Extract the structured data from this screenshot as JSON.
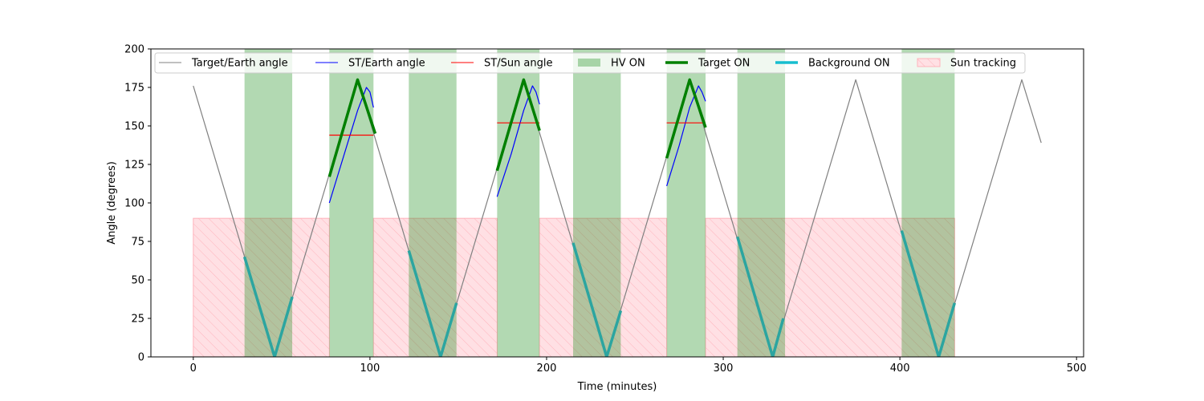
{
  "chart_data": {
    "type": "line",
    "xlabel": "Time (minutes)",
    "ylabel": "Angle (degrees)",
    "xlim": [
      -24,
      504
    ],
    "ylim": [
      0,
      200
    ],
    "xticks": [
      0,
      100,
      200,
      300,
      400,
      500
    ],
    "yticks": [
      0,
      25,
      50,
      75,
      100,
      125,
      150,
      175,
      200
    ],
    "grid": false,
    "legend_position": "top",
    "colors": {
      "target_earth": "#808080",
      "st_earth": "#0000ff",
      "st_sun": "#ff0000",
      "hv_on": "#b3d9b3",
      "target_on": "#008000",
      "background_on": "#2ca5a0",
      "sun_fill": "#ffe0e4",
      "sun_hatch": "#ffb3bc"
    },
    "legend": [
      {
        "label": "Target/Earth angle",
        "kind": "line",
        "color": "#808080",
        "width": 1
      },
      {
        "label": "ST/Earth angle",
        "kind": "line",
        "color": "#0000ff",
        "width": 1
      },
      {
        "label": "ST/Sun angle",
        "kind": "line",
        "color": "#ff0000",
        "width": 1
      },
      {
        "label": "HV ON",
        "kind": "patch",
        "color": "#b3d9b3"
      },
      {
        "label": "Target ON",
        "kind": "line",
        "color": "#008000",
        "width": 3.5
      },
      {
        "label": "Background ON",
        "kind": "line",
        "color": "#17becf",
        "width": 3.5
      },
      {
        "label": "Sun tracking",
        "kind": "hatch",
        "color": "#ffe0e4"
      }
    ],
    "series": [
      {
        "name": "Target/Earth angle",
        "points": [
          [
            0,
            176
          ],
          [
            46,
            0
          ],
          [
            93,
            180
          ],
          [
            140,
            0
          ],
          [
            187,
            180
          ],
          [
            234,
            0
          ],
          [
            281,
            180
          ],
          [
            328,
            0
          ],
          [
            375,
            180
          ],
          [
            422,
            0
          ],
          [
            469,
            180
          ],
          [
            480,
            139
          ]
        ]
      },
      {
        "name": "ST/Earth angle",
        "segments": [
          [
            [
              77,
              100
            ],
            [
              85,
              130
            ],
            [
              93,
              160
            ],
            [
              98,
              175
            ],
            [
              100,
              172
            ],
            [
              102,
              162
            ]
          ],
          [
            [
              172,
              104
            ],
            [
              180,
              132
            ],
            [
              187,
              160
            ],
            [
              192,
              176
            ],
            [
              194,
              172
            ],
            [
              196,
              164
            ]
          ],
          [
            [
              268,
              111
            ],
            [
              275,
              137
            ],
            [
              281,
              162
            ],
            [
              286,
              176
            ],
            [
              288,
              172
            ],
            [
              290,
              166
            ]
          ]
        ]
      },
      {
        "name": "ST/Sun angle",
        "segments": [
          [
            [
              77,
              144
            ],
            [
              102,
              144
            ]
          ],
          [
            [
              172,
              152
            ],
            [
              196,
              152
            ]
          ],
          [
            [
              268,
              152
            ],
            [
              290,
              152
            ]
          ]
        ]
      },
      {
        "name": "Target ON",
        "segments": [
          [
            [
              77,
              117
            ],
            [
              93,
              180
            ],
            [
              103,
              145
            ]
          ],
          [
            [
              172,
              121
            ],
            [
              187,
              180
            ],
            [
              196,
              147
            ]
          ],
          [
            [
              268,
              129
            ],
            [
              281,
              180
            ],
            [
              290,
              149
            ]
          ]
        ]
      },
      {
        "name": "Background ON",
        "segments": [
          [
            [
              29,
              65
            ],
            [
              46,
              0
            ],
            [
              56,
              39
            ]
          ],
          [
            [
              122,
              69
            ],
            [
              140,
              0
            ],
            [
              149,
              35
            ]
          ],
          [
            [
              215,
              74
            ],
            [
              234,
              0
            ],
            [
              242,
              30
            ]
          ],
          [
            [
              308,
              78
            ],
            [
              328,
              0
            ],
            [
              334,
              25
            ]
          ],
          [
            [
              401,
              82
            ],
            [
              422,
              0
            ],
            [
              431,
              35
            ]
          ]
        ]
      }
    ],
    "hv_on_spans": [
      [
        29,
        56
      ],
      [
        77,
        102
      ],
      [
        122,
        149
      ],
      [
        172,
        196
      ],
      [
        215,
        242
      ],
      [
        268,
        290
      ],
      [
        308,
        335
      ],
      [
        401,
        431
      ]
    ],
    "sun_tracking_spans": [
      [
        0,
        77
      ],
      [
        102,
        172
      ],
      [
        196,
        268
      ],
      [
        290,
        431
      ]
    ],
    "sun_tracking_ymax": 90
  }
}
